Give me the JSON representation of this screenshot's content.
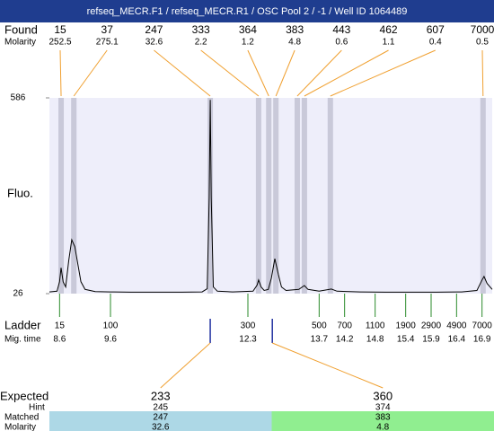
{
  "title": "refseq_MECR.F1 / refseq_MECR.R1 / OSC Pool 2 / -1 / Well ID 1064489",
  "chart_data": {
    "type": "electropherogram",
    "ylabel": "Fluo.",
    "xlim": [
      8.4,
      17.1
    ],
    "ylim": [
      26,
      586
    ],
    "yticks": [
      26,
      586
    ],
    "trace": {
      "x": [
        8.4,
        8.55,
        8.6,
        8.63,
        8.67,
        8.72,
        8.78,
        8.84,
        8.9,
        8.96,
        9.02,
        9.1,
        9.3,
        9.6,
        10.0,
        10.5,
        11.0,
        11.4,
        11.5,
        11.54,
        11.56,
        11.58,
        11.62,
        11.7,
        12.0,
        12.4,
        12.48,
        12.51,
        12.56,
        12.62,
        12.7,
        12.76,
        12.83,
        12.9,
        12.96,
        13.05,
        13.3,
        13.41,
        13.48,
        13.7,
        13.94,
        14.05,
        14.5,
        15.0,
        15.5,
        16.0,
        16.5,
        16.8,
        16.9,
        16.94,
        17.0,
        17.1
      ],
      "values": [
        31,
        33,
        60,
        100,
        60,
        45,
        120,
        180,
        160,
        110,
        60,
        38,
        32,
        31,
        30,
        30,
        30,
        31,
        40,
        300,
        580,
        300,
        45,
        33,
        31,
        33,
        50,
        65,
        45,
        35,
        38,
        70,
        126,
        80,
        45,
        35,
        38,
        49,
        38,
        33,
        39,
        33,
        31,
        30,
        30,
        30,
        31,
        35,
        65,
        75,
        55,
        38
      ]
    },
    "found": {
      "label": "Found",
      "molarity_label": "Molarity",
      "sizes": [
        15,
        37,
        247,
        333,
        364,
        383,
        443,
        462,
        607,
        7000
      ],
      "molarity": [
        252.5,
        275.1,
        32.6,
        2.2,
        1.2,
        4.8,
        0.6,
        1.1,
        0.4,
        0.5
      ],
      "times": [
        8.63,
        8.88,
        11.56,
        12.51,
        12.71,
        12.85,
        13.27,
        13.41,
        13.92,
        16.92
      ]
    },
    "ladder": {
      "label": "Ladder",
      "time_label": "Mig. time",
      "sizes": [
        15,
        100,
        300,
        500,
        700,
        1100,
        1900,
        2900,
        4900,
        7000
      ],
      "times": [
        8.6,
        9.6,
        12.3,
        13.7,
        14.2,
        14.8,
        15.4,
        15.9,
        16.4,
        16.9
      ]
    },
    "expected": {
      "label": "Expected",
      "hint_label": "Hint",
      "matched_label": "Matched",
      "molarity_label": "Molarity",
      "sizes": [
        233,
        360
      ],
      "hints": [
        245,
        374
      ],
      "matched": [
        247,
        383
      ],
      "molarity": [
        32.6,
        4.8
      ],
      "times": [
        11.56,
        12.78
      ],
      "colors": [
        "#add8e6",
        "#90ee90"
      ]
    }
  }
}
